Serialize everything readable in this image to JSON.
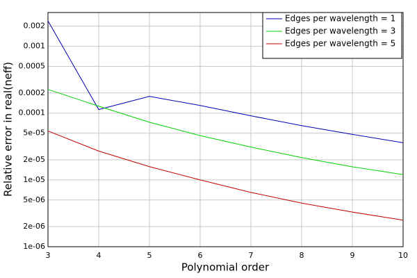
{
  "chart_data": {
    "type": "line",
    "xlabel": "Polynomial order",
    "ylabel": "Relative error in real(neff)",
    "x": [
      3,
      4,
      5,
      6,
      7,
      8,
      9,
      10
    ],
    "series": [
      {
        "name": "Edges per wavelength = 1",
        "color": "#0000b4",
        "values": [
          0.0024,
          0.000113,
          0.000178,
          0.00013,
          9.1e-05,
          6.5e-05,
          4.8e-05,
          3.6e-05
        ]
      },
      {
        "name": "Edges per wavelength = 3",
        "color": "#00d000",
        "values": [
          0.000226,
          0.000127,
          7.3e-05,
          4.6e-05,
          3.1e-05,
          2.16e-05,
          1.57e-05,
          1.2e-05
        ]
      },
      {
        "name": "Edges per wavelength = 5",
        "color": "#c00000",
        "values": [
          5.4e-05,
          2.7e-05,
          1.58e-05,
          1e-05,
          6.5e-06,
          4.5e-06,
          3.3e-06,
          2.5e-06
        ]
      }
    ],
    "xlim": [
      3,
      10
    ],
    "xticks": [
      3,
      4,
      5,
      6,
      7,
      8,
      9,
      10
    ],
    "ylim": [
      1e-06,
      0.0032
    ],
    "log_y": true,
    "grid": true,
    "legend": "upper right",
    "yticks": [
      {
        "value": 1e-06,
        "label": "1e-06"
      },
      {
        "value": 2e-06,
        "label": "2e-06"
      },
      {
        "value": 5e-06,
        "label": "5e-06"
      },
      {
        "value": 1e-05,
        "label": "1e-05"
      },
      {
        "value": 2e-05,
        "label": "2e-05"
      },
      {
        "value": 5e-05,
        "label": "5e-05"
      },
      0.0001,
      0.0002,
      0.0005,
      0.001,
      0.002
    ]
  }
}
